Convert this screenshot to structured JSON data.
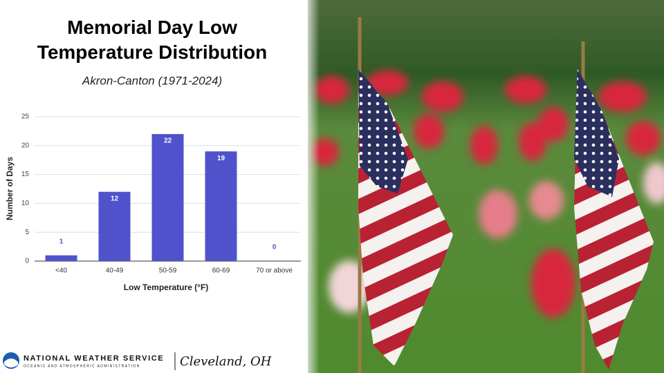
{
  "chart_data": {
    "type": "bar",
    "title": "Memorial Day Low Temperature Distribution",
    "subtitle": "Akron-Canton (1971-2024)",
    "categories": [
      "<40",
      "40-49",
      "50-59",
      "60-69",
      "70 or above"
    ],
    "values": [
      1,
      12,
      22,
      19,
      0
    ],
    "color": "#5052cc",
    "ylim": [
      0,
      25
    ],
    "yticks": [
      0,
      5,
      10,
      15,
      20,
      25
    ],
    "grid": true,
    "xlabel": "Low Temperature (°F)",
    "ylabel": "Number of Days"
  },
  "footer": {
    "agency": "NATIONAL WEATHER SERVICE",
    "subagency": "OCEANIC AND ATMOSPHERIC ADMINISTRATION",
    "office": "Cleveland, OH"
  }
}
